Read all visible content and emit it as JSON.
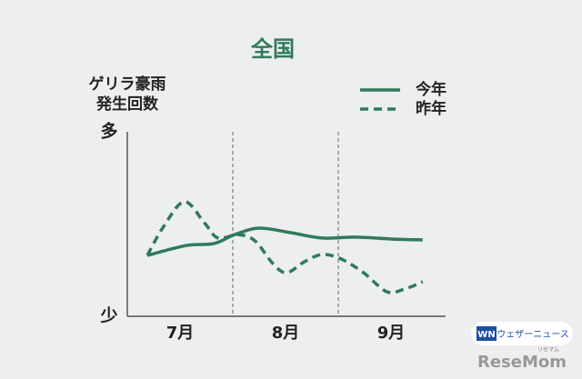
{
  "chart_data": {
    "type": "line",
    "title": "全国",
    "ylabel": [
      "ゲリラ豪雨",
      "発生回数"
    ],
    "xlim": [
      0,
      3
    ],
    "xticks": [
      {
        "value": 0.5,
        "label": "7月"
      },
      {
        "value": 1.5,
        "label": "8月"
      },
      {
        "value": 2.5,
        "label": "9月"
      }
    ],
    "ylim": [
      0,
      100
    ],
    "yticks": [
      {
        "value": 0,
        "label": "少"
      },
      {
        "value": 100,
        "label": "多"
      }
    ],
    "legend": "upper right",
    "series": [
      {
        "name": "今年",
        "color": "#2f7a5a",
        "style": "solid",
        "x": [
          0.19,
          0.56,
          0.82,
          1.02,
          1.25,
          1.55,
          1.85,
          2.16,
          2.5,
          2.8
        ],
        "values": [
          33,
          38.4,
          39.4,
          44.3,
          47.8,
          45.3,
          42.4,
          42.9,
          41.9,
          41.4
        ]
      },
      {
        "name": "昨年",
        "color": "#2f7a5a",
        "style": "dashed",
        "x": [
          0.19,
          0.34,
          0.54,
          0.73,
          0.86,
          1.05,
          1.21,
          1.38,
          1.51,
          1.68,
          1.85,
          2.03,
          2.24,
          2.46,
          2.63,
          2.8
        ],
        "values": [
          33,
          48.3,
          62.1,
          50.7,
          42.4,
          44.3,
          40.9,
          28.6,
          23.6,
          29.6,
          33.5,
          31,
          23.6,
          13.3,
          14.8,
          18.7
        ]
      }
    ]
  },
  "credits": {
    "wn_icon": "WN",
    "weathernews": "ウェザーニュース",
    "resemom": "ReseMom",
    "resemom_kana": "リセマム"
  }
}
